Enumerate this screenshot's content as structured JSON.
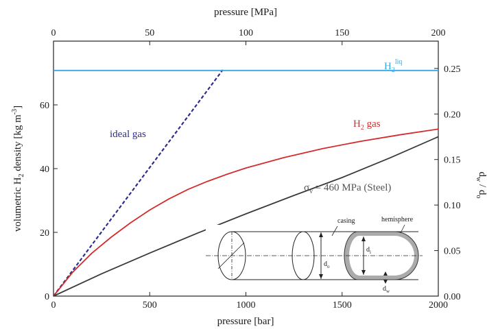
{
  "chart_data": {
    "type": "line",
    "x_bottom": {
      "label": "pressure [bar]",
      "ticks": [
        0,
        500,
        1000,
        1500,
        2000
      ],
      "range": [
        0,
        2000
      ]
    },
    "x_top": {
      "label": "pressure [MPa]",
      "ticks": [
        0,
        50,
        100,
        150,
        200
      ],
      "range": [
        0,
        200
      ]
    },
    "y_left": {
      "label_main": "volumetric H",
      "label_sub": "2",
      "label_mid": " density [kg m",
      "label_sup": "-3",
      "label_end": "]",
      "ticks": [
        0,
        20,
        40,
        60
      ],
      "range": [
        0,
        80
      ]
    },
    "y_right": {
      "label_main": "d",
      "label_sub1": "w",
      "label_mid": " / d",
      "label_sub2": "o",
      "ticks": [
        "0.00",
        "0.05",
        "0.10",
        "0.15",
        "0.20",
        "0.25"
      ],
      "range": [
        0,
        0.28
      ]
    },
    "grid": false,
    "series": [
      {
        "name": "ideal gas",
        "style": "dashed",
        "color": "#2b2d8f",
        "x": [
          0,
          880
        ],
        "y": [
          0,
          71
        ]
      },
      {
        "name": "H2 gas",
        "style": "solid",
        "color": "#d42a2a",
        "x": [
          0,
          100,
          200,
          300,
          400,
          500,
          600,
          700,
          800,
          900,
          1000,
          1200,
          1400,
          1600,
          1800,
          2000
        ],
        "y": [
          0,
          7.5,
          13.5,
          18.5,
          23,
          27,
          30.5,
          33.5,
          36,
          38.2,
          40.2,
          43.5,
          46.3,
          48.6,
          50.6,
          52.4
        ]
      },
      {
        "name": "σv = 460 MPa (Steel)",
        "style": "solid",
        "color": "#3a3a3a",
        "x": [
          0,
          250,
          500,
          750,
          1000,
          1250,
          1500,
          1750,
          2000
        ],
        "y": [
          0,
          7,
          13.5,
          19.8,
          25.8,
          31.6,
          37.2,
          43.4,
          50
        ]
      },
      {
        "name": "H2 liq",
        "style": "solid",
        "color": "#3aa6dc",
        "x": [
          0,
          2000
        ],
        "y": [
          70.8,
          70.8
        ]
      }
    ],
    "annotations": {
      "ideal_gas": "ideal gas",
      "h2_gas_main": "H",
      "h2_gas_sub": "2",
      "h2_gas_end": " gas",
      "h2_liq_main": "H",
      "h2_liq_sub": "2",
      "h2_liq_sup": "liq",
      "steel_sigma": "σ",
      "steel_sub": "v",
      "steel_end": " = 460 MPa (Steel)"
    },
    "inset": {
      "casing": "casing",
      "hemisphere": "hemisphere",
      "di": "d",
      "di_sub": "i",
      "do": "d",
      "do_sub": "o",
      "dw": "d",
      "dw_sub": "w"
    }
  },
  "colors": {
    "ideal": "#2b2d8f",
    "h2gas": "#d42a2a",
    "steel": "#3a3a3a",
    "liquid": "#3aa6dc"
  }
}
